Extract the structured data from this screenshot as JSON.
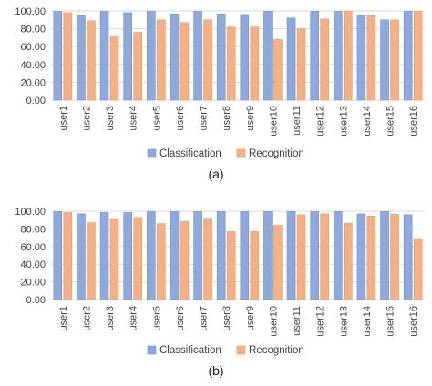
{
  "chart_data": [
    {
      "type": "bar",
      "caption": "(a)",
      "categories": [
        "user1",
        "user2",
        "user3",
        "user4",
        "user5",
        "user6",
        "user7",
        "user8",
        "user9",
        "user10",
        "user11",
        "user12",
        "user13",
        "user14",
        "user15",
        "user16"
      ],
      "series": [
        {
          "name": "Classification",
          "values": [
            99.5,
            94.5,
            99.5,
            98,
            99.5,
            96.5,
            99.5,
            96.5,
            96,
            99.5,
            92,
            99.5,
            99.5,
            94.5,
            90,
            99.5
          ],
          "color": "#8ea9db"
        },
        {
          "name": "Recognition",
          "values": [
            98,
            89,
            72,
            76,
            90,
            87,
            90,
            82,
            82,
            68,
            80,
            91,
            99.5,
            94.5,
            90,
            99.5
          ],
          "color": "#f4b183"
        }
      ],
      "ylim": [
        0,
        100
      ],
      "yticks": [
        "0.00",
        "20.00",
        "40.00",
        "60.00",
        "80.00",
        "100.00"
      ],
      "grid": true,
      "legend": "bottom"
    },
    {
      "type": "bar",
      "caption": "(b)",
      "categories": [
        "user1",
        "user2",
        "user3",
        "user4",
        "user5",
        "user6",
        "user7",
        "user8",
        "user9",
        "user10",
        "user11",
        "user12",
        "user13",
        "user14",
        "user15",
        "user16"
      ],
      "series": [
        {
          "name": "Classification",
          "values": [
            99.5,
            97,
            98.5,
            98.5,
            99.5,
            99.5,
            99.5,
            99.5,
            99.5,
            99.5,
            99.5,
            99.5,
            99.5,
            97,
            99.5,
            96
          ],
          "color": "#8ea9db"
        },
        {
          "name": "Recognition",
          "values": [
            98.5,
            87,
            90.5,
            93,
            86,
            88.5,
            91,
            77,
            77,
            84,
            96,
            97,
            86.5,
            94.5,
            96.5,
            69
          ],
          "color": "#f4b183"
        }
      ],
      "ylim": [
        0,
        100
      ],
      "yticks": [
        "0.00",
        "20.00",
        "40.00",
        "60.00",
        "80.00",
        "100.00"
      ],
      "grid": true,
      "legend": "bottom"
    }
  ]
}
